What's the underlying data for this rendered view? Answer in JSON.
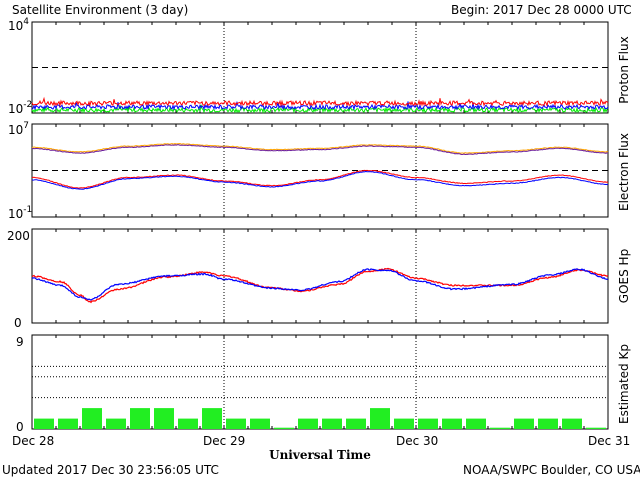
{
  "header": {
    "title": "Satellite Environment (3 day)",
    "begin": "Begin:  2017 Dec 28 0000 UTC"
  },
  "footer": {
    "updated": "Updated 2017 Dec 30 23:56:05 UTC",
    "credit": "NOAA/SWPC Boulder, CO USA",
    "xlabel": "Universal Time"
  },
  "x_ticks": [
    "Dec 28",
    "Dec 29",
    "Dec 30",
    "Dec 31"
  ],
  "colors": {
    "red": "#ff0000",
    "blue": "#0000ff",
    "green": "#00ee00",
    "orange": "#ffa500",
    "kp_bar": "#22ee22"
  },
  "chart_data": [
    {
      "type": "line",
      "name": "proton-flux",
      "ylabel": "Proton Flux",
      "yscale": "log",
      "ylim_exp": [
        -2,
        4
      ],
      "tick_labels": {
        "top": "10",
        "top_exp": "4",
        "bottom": "10",
        "bottom_exp": "-2"
      },
      "threshold_exp": 1,
      "x_days": [
        0,
        3
      ],
      "series": [
        {
          "color": "red",
          "base_exp": -1.35
        },
        {
          "color": "blue",
          "base_exp": -1.6
        },
        {
          "color": "green",
          "base_exp": -1.8
        }
      ]
    },
    {
      "type": "line",
      "name": "electron-flux",
      "ylabel": "Electron Flux",
      "yscale": "log",
      "ylim_exp": [
        -1,
        7
      ],
      "tick_labels": {
        "top": "10",
        "top_exp": "7",
        "bottom": "10",
        "bottom_exp": "-1"
      },
      "threshold_exp": 3,
      "x_days": [
        0,
        3
      ],
      "series": [
        {
          "color": "orange",
          "points": [
            [
              0,
              5.0
            ],
            [
              0.25,
              4.6
            ],
            [
              0.5,
              5.1
            ],
            [
              0.75,
              5.3
            ],
            [
              1.0,
              5.1
            ],
            [
              1.25,
              4.8
            ],
            [
              1.5,
              4.9
            ],
            [
              1.75,
              5.2
            ],
            [
              2.0,
              5.1
            ],
            [
              2.25,
              4.5
            ],
            [
              2.5,
              4.7
            ],
            [
              2.75,
              5.0
            ],
            [
              3.0,
              4.6
            ]
          ]
        },
        {
          "color": "purple",
          "points": [
            [
              0,
              4.9
            ],
            [
              0.25,
              4.5
            ],
            [
              0.5,
              5.0
            ],
            [
              0.75,
              5.2
            ],
            [
              1.0,
              5.0
            ],
            [
              1.25,
              4.7
            ],
            [
              1.5,
              4.8
            ],
            [
              1.75,
              5.1
            ],
            [
              2.0,
              5.0
            ],
            [
              2.25,
              4.4
            ],
            [
              2.5,
              4.6
            ],
            [
              2.75,
              4.9
            ],
            [
              3.0,
              4.5
            ]
          ]
        },
        {
          "color": "red",
          "points": [
            [
              0,
              2.4
            ],
            [
              0.25,
              1.5
            ],
            [
              0.5,
              2.4
            ],
            [
              0.75,
              2.6
            ],
            [
              1.0,
              2.1
            ],
            [
              1.25,
              1.7
            ],
            [
              1.5,
              2.2
            ],
            [
              1.75,
              3.0
            ],
            [
              2.0,
              2.4
            ],
            [
              2.25,
              1.9
            ],
            [
              2.5,
              2.1
            ],
            [
              2.75,
              2.6
            ],
            [
              3.0,
              2.0
            ]
          ]
        },
        {
          "color": "blue",
          "points": [
            [
              0,
              2.2
            ],
            [
              0.25,
              1.4
            ],
            [
              0.5,
              2.3
            ],
            [
              0.75,
              2.5
            ],
            [
              1.0,
              2.0
            ],
            [
              1.25,
              1.6
            ],
            [
              1.5,
              2.1
            ],
            [
              1.75,
              2.9
            ],
            [
              2.0,
              2.2
            ],
            [
              2.25,
              1.7
            ],
            [
              2.5,
              1.9
            ],
            [
              2.75,
              2.4
            ],
            [
              3.0,
              1.8
            ]
          ]
        }
      ]
    },
    {
      "type": "line",
      "name": "goes-hp",
      "ylabel": "GOES Hp",
      "ylim": [
        0,
        200
      ],
      "yticks": [
        "0",
        "200"
      ],
      "x_days": [
        0,
        3
      ],
      "series": [
        {
          "color": "red",
          "points": [
            [
              0,
              100
            ],
            [
              0.15,
              88
            ],
            [
              0.25,
              60
            ],
            [
              0.3,
              45
            ],
            [
              0.45,
              72
            ],
            [
              0.7,
              98
            ],
            [
              0.9,
              108
            ],
            [
              1.0,
              100
            ],
            [
              1.25,
              75
            ],
            [
              1.4,
              68
            ],
            [
              1.6,
              82
            ],
            [
              1.75,
              110
            ],
            [
              1.85,
              115
            ],
            [
              2.0,
              95
            ],
            [
              2.2,
              80
            ],
            [
              2.5,
              80
            ],
            [
              2.7,
              97
            ],
            [
              2.85,
              113
            ],
            [
              3.0,
              100
            ]
          ]
        },
        {
          "color": "blue",
          "points": [
            [
              0,
              95
            ],
            [
              0.15,
              80
            ],
            [
              0.25,
              55
            ],
            [
              0.3,
              50
            ],
            [
              0.45,
              82
            ],
            [
              0.7,
              100
            ],
            [
              0.9,
              104
            ],
            [
              1.0,
              93
            ],
            [
              1.25,
              74
            ],
            [
              1.4,
              70
            ],
            [
              1.6,
              88
            ],
            [
              1.75,
              114
            ],
            [
              1.85,
              112
            ],
            [
              2.0,
              90
            ],
            [
              2.2,
              72
            ],
            [
              2.5,
              82
            ],
            [
              2.7,
              102
            ],
            [
              2.85,
              114
            ],
            [
              3.0,
              94
            ]
          ]
        }
      ]
    },
    {
      "type": "bar",
      "name": "estimated-kp",
      "ylabel": "Estimated Kp",
      "ylim": [
        0,
        9
      ],
      "yticks": [
        "0",
        "9"
      ],
      "values": [
        1,
        1,
        2,
        1,
        2,
        2,
        1,
        2,
        1,
        1,
        0,
        1,
        1,
        1,
        2,
        1,
        1,
        1,
        1,
        0,
        1,
        1,
        1,
        0
      ]
    }
  ]
}
